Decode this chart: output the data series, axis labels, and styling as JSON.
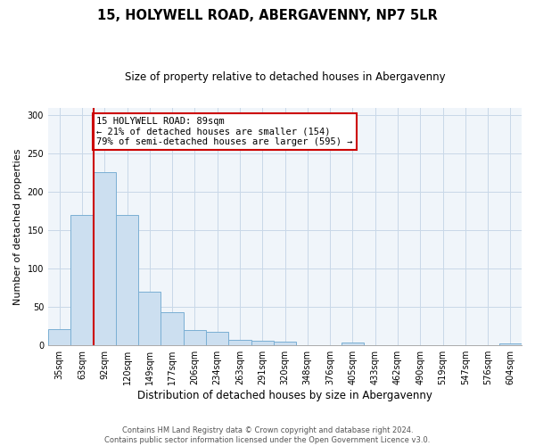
{
  "title": "15, HOLYWELL ROAD, ABERGAVENNY, NP7 5LR",
  "subtitle": "Size of property relative to detached houses in Abergavenny",
  "xlabel": "Distribution of detached houses by size in Abergavenny",
  "ylabel": "Number of detached properties",
  "bar_labels": [
    "35sqm",
    "63sqm",
    "92sqm",
    "120sqm",
    "149sqm",
    "177sqm",
    "206sqm",
    "234sqm",
    "263sqm",
    "291sqm",
    "320sqm",
    "348sqm",
    "376sqm",
    "405sqm",
    "433sqm",
    "462sqm",
    "490sqm",
    "519sqm",
    "547sqm",
    "576sqm",
    "604sqm"
  ],
  "bar_values": [
    21,
    170,
    226,
    170,
    70,
    43,
    20,
    18,
    7,
    6,
    5,
    0,
    0,
    4,
    0,
    0,
    0,
    0,
    0,
    0,
    2
  ],
  "bar_color": "#ccdff0",
  "bar_edge_color": "#7aafd4",
  "vline_color": "#cc0000",
  "annotation_title": "15 HOLYWELL ROAD: 89sqm",
  "annotation_line1": "← 21% of detached houses are smaller (154)",
  "annotation_line2": "79% of semi-detached houses are larger (595) →",
  "annotation_box_color": "#cc0000",
  "ylim": [
    0,
    310
  ],
  "yticks": [
    0,
    50,
    100,
    150,
    200,
    250,
    300
  ],
  "footer1": "Contains HM Land Registry data © Crown copyright and database right 2024.",
  "footer2": "Contains public sector information licensed under the Open Government Licence v3.0."
}
